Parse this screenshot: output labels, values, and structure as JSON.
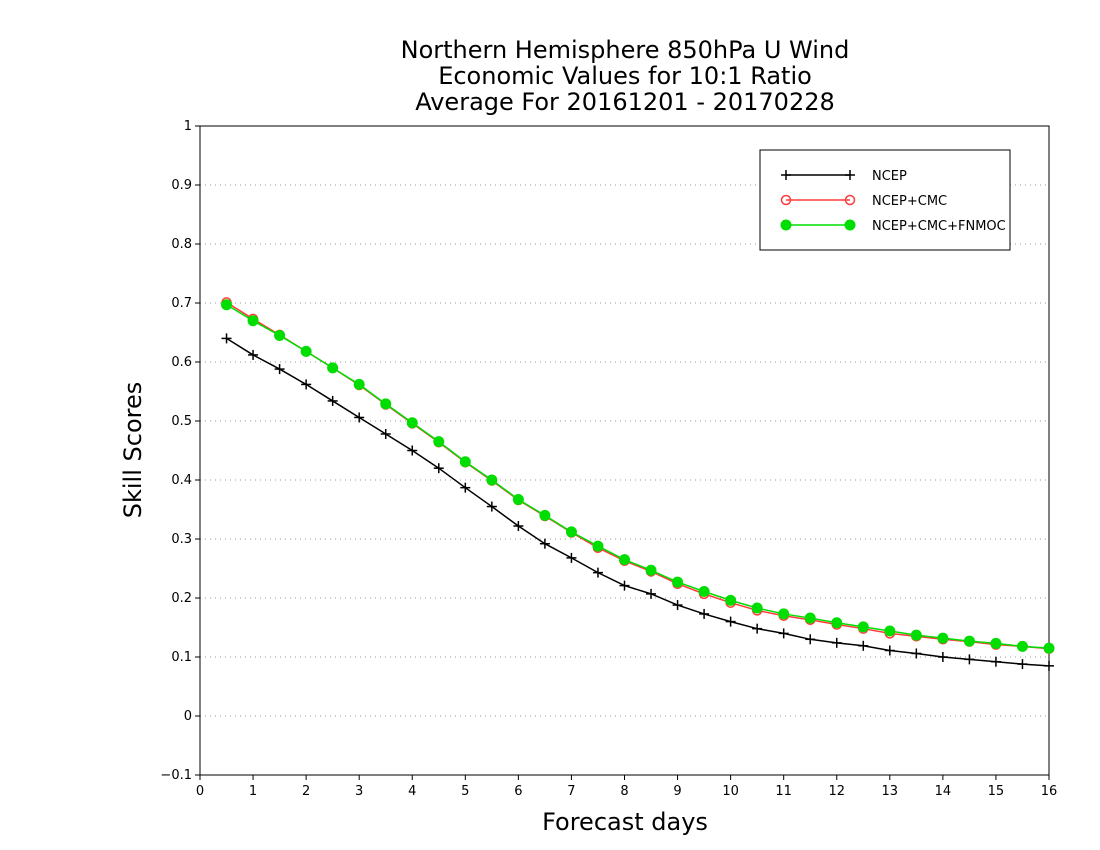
{
  "chart_data": {
    "type": "line",
    "title": [
      "Northern Hemisphere 850hPa U Wind",
      "Economic Values for 10:1 Ratio",
      "Average For 20161201 - 20170228"
    ],
    "xlabel": "Forecast days",
    "ylabel": "Skill Scores",
    "xlim": [
      0,
      16
    ],
    "ylim": [
      -0.1,
      1
    ],
    "xticks": [
      "0",
      "1",
      "2",
      "3",
      "4",
      "5",
      "6",
      "7",
      "8",
      "9",
      "10",
      "11",
      "12",
      "13",
      "14",
      "15",
      "16"
    ],
    "yticks": [
      "−0.1",
      "0",
      "0.1",
      "0.2",
      "0.3",
      "0.4",
      "0.5",
      "0.6",
      "0.7",
      "0.8",
      "0.9",
      "1"
    ],
    "grid": "horizontal dotted",
    "legend_position": "top-right",
    "x": [
      0.5,
      1,
      1.5,
      2,
      2.5,
      3,
      3.5,
      4,
      4.5,
      5,
      5.5,
      6,
      6.5,
      7,
      7.5,
      8,
      8.5,
      9,
      9.5,
      10,
      10.5,
      11,
      11.5,
      12,
      12.5,
      13,
      13.5,
      14,
      14.5,
      15,
      15.5,
      16
    ],
    "series": [
      {
        "name": "NCEP",
        "color": "#000000",
        "marker": "plus",
        "values": [
          0.64,
          0.612,
          0.588,
          0.562,
          0.534,
          0.506,
          0.478,
          0.45,
          0.42,
          0.387,
          0.355,
          0.322,
          0.292,
          0.268,
          0.243,
          0.221,
          0.207,
          0.188,
          0.173,
          0.16,
          0.148,
          0.14,
          0.13,
          0.124,
          0.119,
          0.111,
          0.106,
          0.1,
          0.096,
          0.092,
          0.088,
          0.085
        ]
      },
      {
        "name": "NCEP+CMC",
        "color": "#ff3b3b",
        "marker": "open-circle",
        "values": [
          0.701,
          0.673,
          0.646,
          0.618,
          0.59,
          0.561,
          0.528,
          0.496,
          0.464,
          0.43,
          0.399,
          0.366,
          0.339,
          0.311,
          0.285,
          0.263,
          0.245,
          0.224,
          0.207,
          0.192,
          0.179,
          0.17,
          0.163,
          0.155,
          0.148,
          0.14,
          0.135,
          0.13,
          0.126,
          0.121,
          0.118,
          0.114
        ]
      },
      {
        "name": "NCEP+CMC+FNMOC",
        "color": "#00dd00",
        "marker": "filled-circle",
        "values": [
          0.697,
          0.67,
          0.645,
          0.618,
          0.59,
          0.562,
          0.529,
          0.497,
          0.465,
          0.431,
          0.4,
          0.367,
          0.34,
          0.312,
          0.288,
          0.265,
          0.247,
          0.227,
          0.211,
          0.196,
          0.183,
          0.173,
          0.166,
          0.158,
          0.151,
          0.144,
          0.137,
          0.132,
          0.127,
          0.123,
          0.118,
          0.115
        ]
      }
    ]
  }
}
